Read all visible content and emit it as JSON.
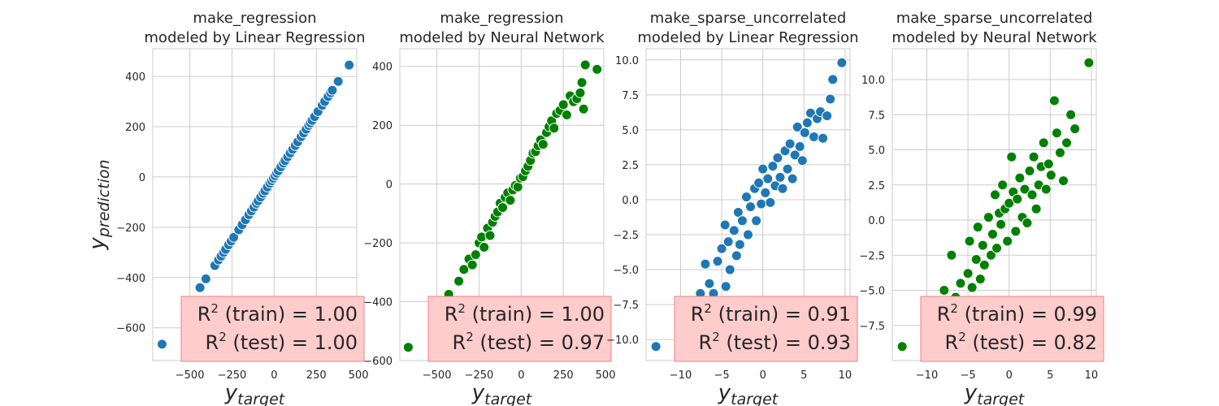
{
  "chart_data": [
    {
      "type": "scatter",
      "title_line1": "make_regression",
      "title_line2": "modeled by Linear Regression",
      "color": "#1f77b4",
      "xlim": [
        -720,
        490
      ],
      "ylim": [
        -730,
        510
      ],
      "xticks": [
        -500,
        -250,
        0,
        250,
        500
      ],
      "xtick_labels": [
        "−500",
        "−250",
        "0",
        "250",
        "500"
      ],
      "yticks": [
        -600,
        -400,
        -200,
        0,
        200,
        400
      ],
      "ytick_labels": [
        "−600",
        "−400",
        "−200",
        "0",
        "200",
        "400"
      ],
      "r2_train": "= 1.00",
      "r2_test": "= 1.00",
      "points": [
        [
          -665,
          -665
        ],
        [
          -440,
          -440
        ],
        [
          -405,
          -405
        ],
        [
          -352,
          -352
        ],
        [
          -330,
          -330
        ],
        [
          -315,
          -315
        ],
        [
          -300,
          -300
        ],
        [
          -288,
          -288
        ],
        [
          -270,
          -270
        ],
        [
          -255,
          -255
        ],
        [
          -240,
          -240
        ],
        [
          -210,
          -210
        ],
        [
          -190,
          -190
        ],
        [
          -170,
          -170
        ],
        [
          -150,
          -150
        ],
        [
          -135,
          -135
        ],
        [
          -120,
          -120
        ],
        [
          -105,
          -105
        ],
        [
          -95,
          -95
        ],
        [
          -80,
          -80
        ],
        [
          -65,
          -65
        ],
        [
          -55,
          -55
        ],
        [
          -40,
          -40
        ],
        [
          -25,
          -25
        ],
        [
          -15,
          -15
        ],
        [
          -5,
          -5
        ],
        [
          5,
          5
        ],
        [
          15,
          15
        ],
        [
          25,
          25
        ],
        [
          40,
          40
        ],
        [
          55,
          55
        ],
        [
          65,
          65
        ],
        [
          80,
          80
        ],
        [
          95,
          95
        ],
        [
          110,
          110
        ],
        [
          125,
          125
        ],
        [
          140,
          140
        ],
        [
          160,
          160
        ],
        [
          175,
          175
        ],
        [
          190,
          190
        ],
        [
          205,
          205
        ],
        [
          215,
          215
        ],
        [
          225,
          225
        ],
        [
          240,
          240
        ],
        [
          260,
          260
        ],
        [
          285,
          285
        ],
        [
          300,
          300
        ],
        [
          320,
          320
        ],
        [
          335,
          335
        ],
        [
          345,
          345
        ],
        [
          380,
          380
        ],
        [
          445,
          445
        ]
      ]
    },
    {
      "type": "scatter",
      "title_line1": "make_regression",
      "title_line2": "modeled by Neural Network",
      "color": "#008000",
      "xlim": [
        -720,
        490
      ],
      "ylim": [
        -600,
        460
      ],
      "xticks": [
        -500,
        -250,
        0,
        250,
        500
      ],
      "xtick_labels": [
        "−500",
        "−250",
        "0",
        "250",
        "500"
      ],
      "yticks": [
        -600,
        -400,
        -200,
        0,
        200,
        400
      ],
      "ytick_labels": [
        "−600",
        "−400",
        "−200",
        "0",
        "200",
        "400"
      ],
      "r2_train": "= 1.00",
      "r2_test": "= 0.97",
      "points": [
        [
          -670,
          -555
        ],
        [
          -430,
          -375
        ],
        [
          -370,
          -330
        ],
        [
          -340,
          -290
        ],
        [
          -310,
          -255
        ],
        [
          -290,
          -275
        ],
        [
          -270,
          -240
        ],
        [
          -250,
          -200
        ],
        [
          -235,
          -180
        ],
        [
          -220,
          -215
        ],
        [
          -200,
          -150
        ],
        [
          -185,
          -175
        ],
        [
          -170,
          -130
        ],
        [
          -155,
          -110
        ],
        [
          -140,
          -95
        ],
        [
          -125,
          -65
        ],
        [
          -110,
          -80
        ],
        [
          -95,
          -45
        ],
        [
          -80,
          -30
        ],
        [
          -65,
          -55
        ],
        [
          -50,
          -20
        ],
        [
          -35,
          -5
        ],
        [
          -20,
          -10
        ],
        [
          -5,
          20
        ],
        [
          10,
          25
        ],
        [
          25,
          45
        ],
        [
          40,
          60
        ],
        [
          55,
          80
        ],
        [
          70,
          105
        ],
        [
          85,
          110
        ],
        [
          100,
          130
        ],
        [
          115,
          150
        ],
        [
          130,
          135
        ],
        [
          150,
          175
        ],
        [
          165,
          195
        ],
        [
          180,
          215
        ],
        [
          195,
          190
        ],
        [
          210,
          240
        ],
        [
          230,
          250
        ],
        [
          250,
          270
        ],
        [
          270,
          235
        ],
        [
          290,
          300
        ],
        [
          310,
          280
        ],
        [
          330,
          290
        ],
        [
          350,
          310
        ],
        [
          360,
          345
        ],
        [
          370,
          255
        ],
        [
          380,
          405
        ],
        [
          450,
          390
        ]
      ]
    },
    {
      "type": "scatter",
      "title_line1": "make_sparse_uncorrelated",
      "title_line2": "modeled by Linear Regression",
      "color": "#1f77b4",
      "xlim": [
        -14.2,
        10.6
      ],
      "ylim": [
        -11.5,
        10.8
      ],
      "xticks": [
        -10,
        -5,
        0,
        5,
        10
      ],
      "xtick_labels": [
        "−10",
        "−5",
        "0",
        "5",
        "10"
      ],
      "yticks": [
        -10.0,
        -7.5,
        -5.0,
        -2.5,
        0.0,
        2.5,
        5.0,
        7.5,
        10.0
      ],
      "ytick_labels": [
        "−10.0",
        "−7.5",
        "−5.0",
        "−2.5",
        "0.0",
        "2.5",
        "5.0",
        "7.5",
        "10.0"
      ],
      "r2_train": "= 0.91",
      "r2_test": "= 0.93",
      "points": [
        [
          -13.0,
          -10.5
        ],
        [
          -7.6,
          -6.7
        ],
        [
          -7.0,
          -4.6
        ],
        [
          -6.5,
          -6.0
        ],
        [
          -6.0,
          -6.7
        ],
        [
          -5.5,
          -4.4
        ],
        [
          -5.0,
          -3.5
        ],
        [
          -4.6,
          -1.8
        ],
        [
          -4.5,
          -6.2
        ],
        [
          -4.2,
          -3.0
        ],
        [
          -4.0,
          -5.0
        ],
        [
          -3.5,
          -2.2
        ],
        [
          -3.2,
          -4.0
        ],
        [
          -3.0,
          -0.9
        ],
        [
          -2.8,
          -3.2
        ],
        [
          -2.5,
          -1.5
        ],
        [
          -2.0,
          0.2
        ],
        [
          -1.8,
          -2.5
        ],
        [
          -1.5,
          -0.5
        ],
        [
          -1.0,
          0.8
        ],
        [
          -0.8,
          -1.5
        ],
        [
          -0.5,
          1.2
        ],
        [
          -0.2,
          -0.3
        ],
        [
          0.0,
          2.2
        ],
        [
          0.3,
          0.5
        ],
        [
          0.6,
          1.5
        ],
        [
          0.9,
          -0.2
        ],
        [
          1.2,
          2.4
        ],
        [
          1.5,
          1.0
        ],
        [
          1.8,
          3.0
        ],
        [
          2.1,
          1.6
        ],
        [
          2.4,
          0.8
        ],
        [
          2.7,
          3.5
        ],
        [
          3.0,
          2.2
        ],
        [
          3.3,
          4.0
        ],
        [
          3.6,
          1.5
        ],
        [
          3.9,
          3.2
        ],
        [
          4.2,
          5.2
        ],
        [
          4.5,
          3.8
        ],
        [
          4.8,
          2.8
        ],
        [
          5.1,
          4.8
        ],
        [
          5.4,
          5.5
        ],
        [
          5.8,
          6.2
        ],
        [
          6.2,
          4.5
        ],
        [
          6.6,
          5.8
        ],
        [
          7.0,
          6.3
        ],
        [
          7.3,
          4.4
        ],
        [
          7.8,
          6.0
        ],
        [
          8.2,
          7.2
        ],
        [
          8.5,
          8.6
        ],
        [
          9.6,
          9.8
        ]
      ]
    },
    {
      "type": "scatter",
      "title_line1": "make_sparse_uncorrelated",
      "title_line2": "modeled by Neural Network",
      "color": "#008000",
      "xlim": [
        -14.2,
        10.6
      ],
      "ylim": [
        -10.0,
        12.2
      ],
      "xticks": [
        -10,
        -5,
        0,
        5,
        10
      ],
      "xtick_labels": [
        "−10",
        "−5",
        "0",
        "5",
        "10"
      ],
      "yticks": [
        -7.5,
        -5.0,
        -2.5,
        0.0,
        2.5,
        5.0,
        7.5,
        10.0
      ],
      "ytick_labels": [
        "−7.5",
        "−5.0",
        "−2.5",
        "0.0",
        "2.5",
        "5.0",
        "7.5",
        "10.0"
      ],
      "r2_train": "= 0.99",
      "r2_test": "= 0.82",
      "points": [
        [
          -13.0,
          -9.0
        ],
        [
          -7.9,
          -5.0
        ],
        [
          -7.0,
          -2.5
        ],
        [
          -6.5,
          -5.5
        ],
        [
          -5.9,
          -4.5
        ],
        [
          -5.5,
          -6.0
        ],
        [
          -5.0,
          -3.8
        ],
        [
          -4.8,
          -1.5
        ],
        [
          -4.5,
          -4.8
        ],
        [
          -4.0,
          -2.8
        ],
        [
          -3.8,
          -0.5
        ],
        [
          -3.5,
          -4.2
        ],
        [
          -3.2,
          -1.8
        ],
        [
          -3.0,
          -3.2
        ],
        [
          -2.5,
          0.2
        ],
        [
          -2.2,
          -2.5
        ],
        [
          -2.0,
          -1.0
        ],
        [
          -1.7,
          1.8
        ],
        [
          -1.5,
          -2.0
        ],
        [
          -1.2,
          0.5
        ],
        [
          -1.0,
          -0.3
        ],
        [
          -0.8,
          2.5
        ],
        [
          -0.5,
          0.8
        ],
        [
          -0.2,
          -1.5
        ],
        [
          0.0,
          1.2
        ],
        [
          0.3,
          4.5
        ],
        [
          0.5,
          2.0
        ],
        [
          0.8,
          -0.8
        ],
        [
          1.0,
          1.5
        ],
        [
          1.3,
          3.0
        ],
        [
          1.6,
          0.2
        ],
        [
          1.9,
          2.2
        ],
        [
          2.2,
          -0.2
        ],
        [
          2.5,
          3.5
        ],
        [
          2.8,
          1.8
        ],
        [
          3.0,
          4.5
        ],
        [
          3.3,
          0.8
        ],
        [
          3.6,
          2.5
        ],
        [
          3.9,
          3.8
        ],
        [
          4.2,
          5.5
        ],
        [
          4.5,
          2.2
        ],
        [
          4.8,
          4.0
        ],
        [
          5.1,
          3.2
        ],
        [
          5.5,
          8.5
        ],
        [
          5.8,
          6.2
        ],
        [
          6.2,
          4.8
        ],
        [
          6.6,
          2.8
        ],
        [
          7.0,
          5.5
        ],
        [
          7.5,
          7.5
        ],
        [
          8.0,
          6.5
        ],
        [
          9.7,
          11.2
        ]
      ]
    }
  ],
  "xlabel_main": "y",
  "xlabel_sub": "target",
  "ylabel_main": "y",
  "ylabel_sub": "prediction",
  "r2_symbol": "R",
  "r2_exponent": "2",
  "r2_train_label": "(train)",
  "r2_test_label": "(test)"
}
